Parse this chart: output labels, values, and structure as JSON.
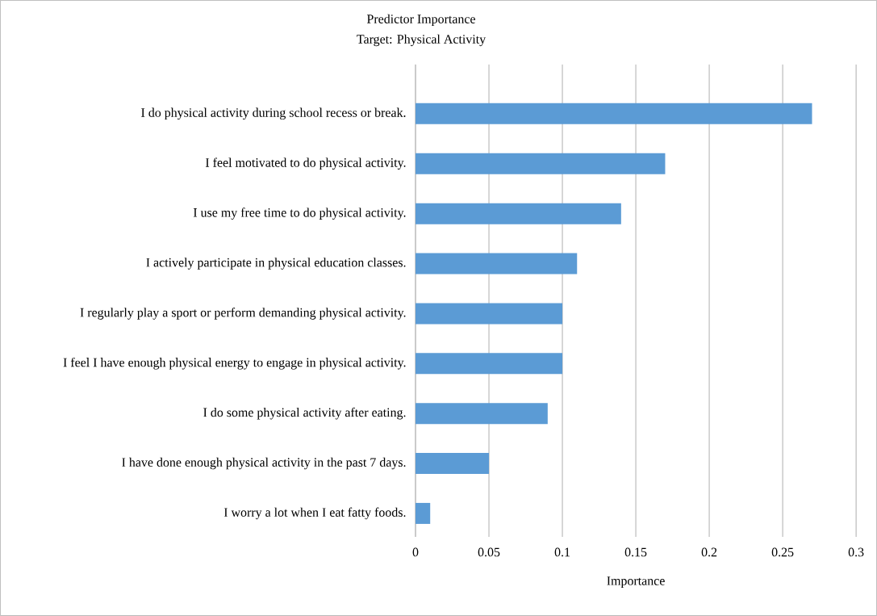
{
  "chart_data": {
    "type": "bar",
    "orientation": "horizontal",
    "title": "Predictor Importance",
    "subtitle": "Target: Physical Activity",
    "xlabel": "Importance",
    "categories": [
      "I do physical activity during school recess or break.",
      "I feel motivated to do physical activity.",
      "I use my free time to do physical activity.",
      "I actively participate in physical education classes.",
      "I regularly play a sport or perform demanding physical activity.",
      "I feel I have enough physical energy to engage in physical activity.",
      "I do some physical activity after eating.",
      "I have done enough physical activity in the past 7 days.",
      "I worry a lot when I eat fatty foods."
    ],
    "values": [
      0.27,
      0.17,
      0.14,
      0.11,
      0.1,
      0.1,
      0.09,
      0.05,
      0.01
    ],
    "color": "#5b9bd5",
    "xlim": [
      0,
      0.3
    ],
    "xticks": [
      0,
      0.05,
      0.1,
      0.15,
      0.2,
      0.25,
      0.3
    ],
    "grid": "x",
    "legend": false
  }
}
